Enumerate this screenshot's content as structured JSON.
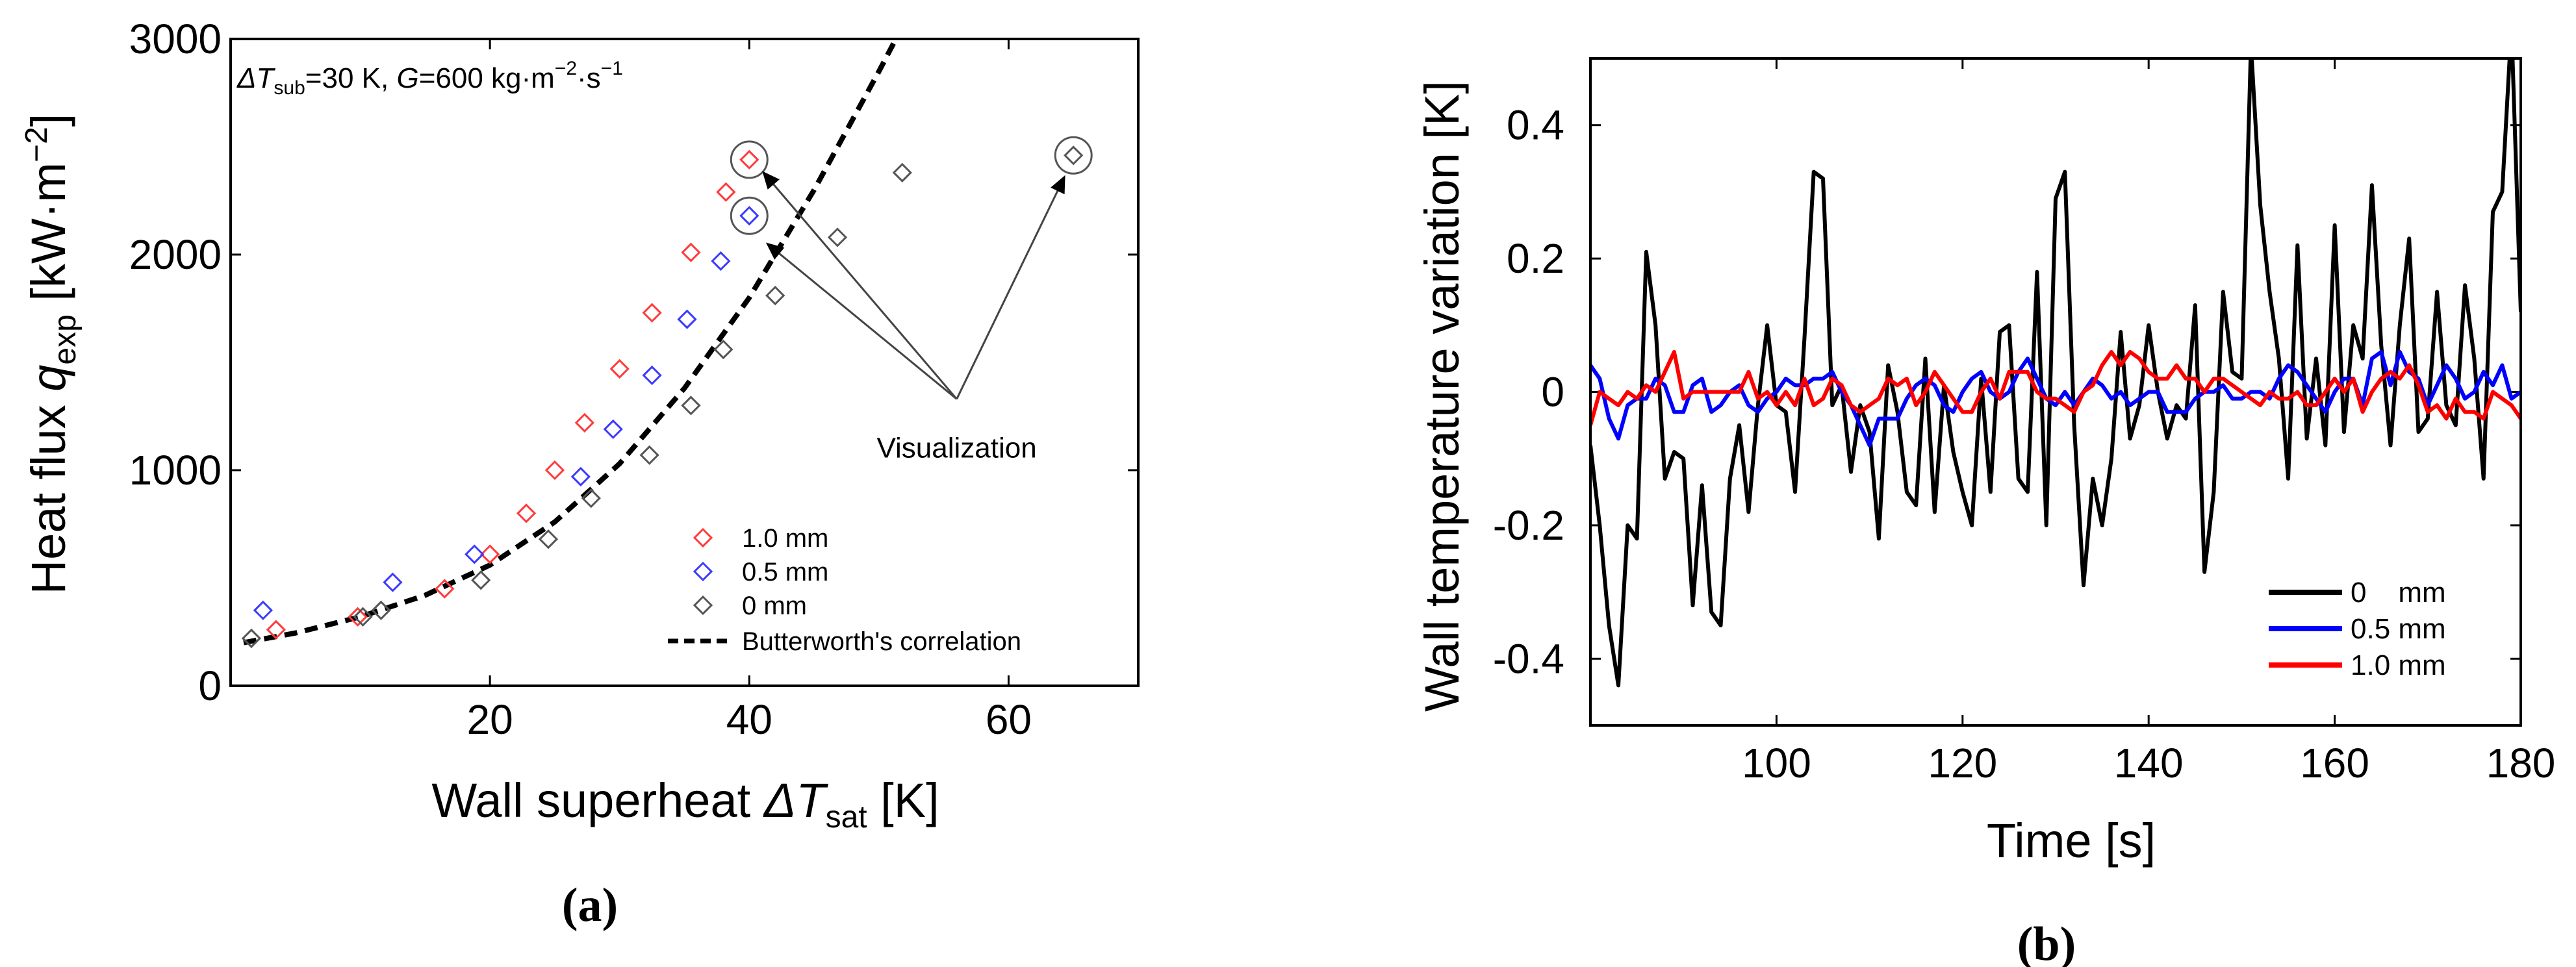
{
  "chart_data": [
    {
      "type": "scatter",
      "panel_label": "(a)",
      "title_parts": {
        "dT": "ΔT",
        "sub": "sub",
        "eq1": "=30 K, ",
        "G": "G",
        "eq2": "=600 kg·m",
        "exp1": "−2",
        "mid": "·s",
        "exp2": "−1"
      },
      "xlabel": {
        "main": "Wall superheat ",
        "sym": "ΔT",
        "sub": "sat",
        "unit": " [K]"
      },
      "ylabel": {
        "main": "Heat flux ",
        "sym": "q",
        "sub": "exp",
        "unit": " [kW·m",
        "exp": "−2",
        "close": "]"
      },
      "xlim": [
        0,
        70
      ],
      "ylim": [
        0,
        3000
      ],
      "xticks": [
        "20",
        "40",
        "60"
      ],
      "xtick_values": [
        20,
        40,
        60
      ],
      "yticks": [
        "0",
        "1000",
        "2000",
        "3000"
      ],
      "ytick_values": [
        0,
        1000,
        2000,
        3000
      ],
      "series": [
        {
          "name": "1.0 mm",
          "color": "#ff3b3b",
          "marker": "diamond",
          "points": [
            [
              3.5,
              260
            ],
            [
              9.8,
              320
            ],
            [
              16.5,
              450
            ],
            [
              20,
              610
            ],
            [
              22.8,
              800
            ],
            [
              25,
              1000
            ],
            [
              27.3,
              1220
            ],
            [
              30,
              1470
            ],
            [
              32.5,
              1730
            ],
            [
              35.5,
              2010
            ],
            [
              38.2,
              2290
            ],
            [
              40,
              2440
            ]
          ]
        },
        {
          "name": "0.5 mm",
          "color": "#3b3bff",
          "marker": "diamond",
          "points": [
            [
              2.5,
              350
            ],
            [
              12.5,
              480
            ],
            [
              18.8,
              610
            ],
            [
              27,
              970
            ],
            [
              29.5,
              1190
            ],
            [
              32.5,
              1440
            ],
            [
              35.2,
              1700
            ],
            [
              37.8,
              1970
            ],
            [
              40,
              2180
            ]
          ]
        },
        {
          "name": "0 mm",
          "color": "#555555",
          "marker": "diamond",
          "points": [
            [
              1.6,
              220
            ],
            [
              10.2,
              320
            ],
            [
              11.6,
              350
            ],
            [
              19.3,
              490
            ],
            [
              24.5,
              680
            ],
            [
              27.8,
              870
            ],
            [
              32.3,
              1070
            ],
            [
              35.5,
              1300
            ],
            [
              38,
              1560
            ],
            [
              42,
              1810
            ],
            [
              46.8,
              2080
            ],
            [
              51.8,
              2380
            ],
            [
              65,
              2460
            ]
          ]
        },
        {
          "name": "Butterworth's correlation",
          "type": "line",
          "style": "dashed",
          "color": "#000000",
          "points": [
            [
              1,
              200
            ],
            [
              5,
              245
            ],
            [
              10,
              320
            ],
            [
              15,
              420
            ],
            [
              20,
              560
            ],
            [
              25,
              760
            ],
            [
              30,
              1030
            ],
            [
              35,
              1380
            ],
            [
              40,
              1800
            ],
            [
              45,
              2300
            ],
            [
              50,
              2850
            ],
            [
              52,
              3080
            ]
          ]
        }
      ],
      "highlighted_points": [
        [
          40,
          2440
        ],
        [
          40,
          2180
        ],
        [
          65,
          2460
        ]
      ],
      "annotation": {
        "text": "Visualization",
        "anchor": [
          56,
          1330
        ]
      },
      "legend_position": "lower-right"
    },
    {
      "type": "line",
      "panel_label": "(b)",
      "xlabel": "Time [s]",
      "ylabel": "Wall temperature variation [K]",
      "xlim": [
        80,
        180
      ],
      "ylim": [
        -0.5,
        0.5
      ],
      "xticks": [
        "100",
        "120",
        "140",
        "160",
        "180"
      ],
      "xtick_values": [
        100,
        120,
        140,
        160,
        180
      ],
      "yticks": [
        "-0.4",
        "-0.2",
        "0",
        "0.2",
        "0.4"
      ],
      "ytick_values": [
        -0.4,
        -0.2,
        0,
        0.2,
        0.4
      ],
      "x": [
        80,
        81,
        82,
        83,
        84,
        85,
        86,
        87,
        88,
        89,
        90,
        91,
        92,
        93,
        94,
        95,
        96,
        97,
        98,
        99,
        100,
        101,
        102,
        103,
        104,
        105,
        106,
        107,
        108,
        109,
        110,
        111,
        112,
        113,
        114,
        115,
        116,
        117,
        118,
        119,
        120,
        121,
        122,
        123,
        124,
        125,
        126,
        127,
        128,
        129,
        130,
        131,
        132,
        133,
        134,
        135,
        136,
        137,
        138,
        139,
        140,
        141,
        142,
        143,
        144,
        145,
        146,
        147,
        148,
        149,
        150,
        151,
        152,
        153,
        154,
        155,
        156,
        157,
        158,
        159,
        160,
        161,
        162,
        163,
        164,
        165,
        166,
        167,
        168,
        169,
        170,
        171,
        172,
        173,
        174,
        175,
        176,
        177,
        178,
        179,
        180
      ],
      "series": [
        {
          "name": "0    mm",
          "color": "#000000",
          "values": [
            -0.08,
            -0.2,
            -0.35,
            -0.44,
            -0.2,
            -0.22,
            0.21,
            0.1,
            -0.13,
            -0.09,
            -0.1,
            -0.32,
            -0.14,
            -0.33,
            -0.35,
            -0.13,
            -0.05,
            -0.18,
            -0.02,
            0.1,
            -0.02,
            -0.03,
            -0.15,
            0.08,
            0.33,
            0.32,
            -0.02,
            0.01,
            -0.12,
            -0.02,
            -0.06,
            -0.22,
            0.04,
            -0.03,
            -0.15,
            -0.17,
            0.05,
            -0.18,
            0.01,
            -0.09,
            -0.15,
            -0.2,
            0.02,
            -0.15,
            0.09,
            0.1,
            -0.13,
            -0.15,
            0.18,
            -0.2,
            0.29,
            0.33,
            -0.05,
            -0.29,
            -0.13,
            -0.2,
            -0.1,
            0.09,
            -0.07,
            -0.02,
            0.1,
            0.0,
            -0.07,
            -0.02,
            -0.04,
            0.13,
            -0.27,
            -0.15,
            0.15,
            0.03,
            0.02,
            0.52,
            0.28,
            0.15,
            0.05,
            -0.13,
            0.22,
            -0.07,
            0.05,
            -0.08,
            0.25,
            -0.06,
            0.1,
            0.05,
            0.31,
            0.07,
            -0.08,
            0.1,
            0.23,
            -0.06,
            -0.04,
            0.15,
            -0.02,
            -0.05,
            0.16,
            0.05,
            -0.13,
            0.27,
            0.3,
            0.55,
            0.12
          ]
        },
        {
          "name": "0.5 mm",
          "color": "#0000ff",
          "values": [
            0.04,
            0.02,
            -0.04,
            -0.07,
            -0.02,
            -0.01,
            -0.01,
            0.02,
            0.01,
            -0.03,
            -0.03,
            0.01,
            0.02,
            -0.03,
            -0.02,
            0.0,
            0.01,
            -0.02,
            -0.03,
            -0.01,
            0.0,
            0.02,
            0.01,
            0.01,
            0.02,
            0.02,
            0.03,
            0.0,
            -0.02,
            -0.05,
            -0.08,
            -0.04,
            -0.04,
            -0.04,
            -0.01,
            0.01,
            0.02,
            0.01,
            -0.02,
            -0.03,
            0.0,
            0.02,
            0.03,
            0.0,
            -0.01,
            0.0,
            0.03,
            0.05,
            0.02,
            -0.01,
            -0.02,
            0.0,
            -0.02,
            0.0,
            0.02,
            0.01,
            -0.01,
            0.0,
            -0.02,
            -0.01,
            0.0,
            0.0,
            -0.03,
            -0.03,
            -0.03,
            -0.01,
            0.0,
            0.0,
            0.01,
            -0.01,
            -0.01,
            0.0,
            0.0,
            -0.01,
            0.02,
            0.04,
            0.03,
            0.01,
            -0.01,
            -0.03,
            0.0,
            0.02,
            0.02,
            -0.02,
            0.05,
            0.06,
            0.01,
            0.06,
            0.03,
            0.02,
            -0.02,
            0.01,
            0.04,
            0.02,
            -0.01,
            0.0,
            0.03,
            0.01,
            0.04,
            -0.01,
            0.0
          ]
        },
        {
          "name": "1.0 mm",
          "color": "#ff0000",
          "values": [
            -0.05,
            0.0,
            -0.01,
            -0.02,
            0.0,
            -0.01,
            0.01,
            0.0,
            0.03,
            0.06,
            -0.01,
            0.0,
            0.0,
            0.0,
            0.0,
            0.0,
            0.0,
            0.03,
            -0.01,
            0.0,
            -0.02,
            0.0,
            -0.02,
            0.02,
            -0.02,
            -0.01,
            0.02,
            0.01,
            -0.02,
            -0.03,
            -0.02,
            -0.01,
            0.02,
            0.01,
            0.02,
            -0.02,
            0.0,
            0.03,
            0.01,
            -0.01,
            -0.03,
            -0.03,
            0.0,
            0.02,
            -0.01,
            0.03,
            0.03,
            0.03,
            0.0,
            -0.01,
            -0.01,
            -0.02,
            -0.03,
            0.0,
            0.01,
            0.04,
            0.06,
            0.04,
            0.06,
            0.05,
            0.03,
            0.02,
            0.02,
            0.04,
            0.02,
            0.02,
            0.0,
            0.02,
            0.02,
            0.01,
            0.0,
            -0.01,
            -0.02,
            0.0,
            -0.01,
            -0.01,
            0.0,
            -0.02,
            -0.02,
            0.0,
            0.02,
            0.0,
            0.02,
            -0.03,
            0.0,
            0.02,
            0.03,
            0.02,
            0.04,
            0.01,
            -0.03,
            -0.02,
            -0.04,
            -0.01,
            -0.03,
            -0.03,
            -0.04,
            0.0,
            -0.01,
            -0.02,
            -0.04
          ]
        }
      ],
      "legend_position": "lower-right"
    }
  ]
}
